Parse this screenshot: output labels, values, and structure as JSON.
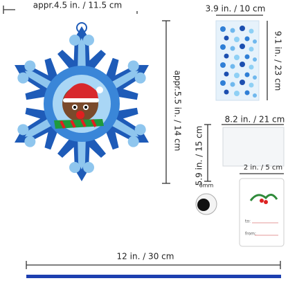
{
  "dimensions": {
    "snowflake_width": "appr.4.5 in. / 11.5 cm",
    "snowflake_height": "appr.5.5 in. / 14 cm",
    "sticker_width": "3.9 in. / 10 cm",
    "sticker_height": "9.1 in. / 23 cm",
    "bag_width": "8.2 in. / 21 cm",
    "bag_height": "5.9 in. / 15 cm",
    "tag_width": "2 in. / 5 cm",
    "eye_size": "6mm",
    "ribbon_length": "12 in. / 30 cm"
  },
  "tag": {
    "to": "to:",
    "from": "from:"
  }
}
